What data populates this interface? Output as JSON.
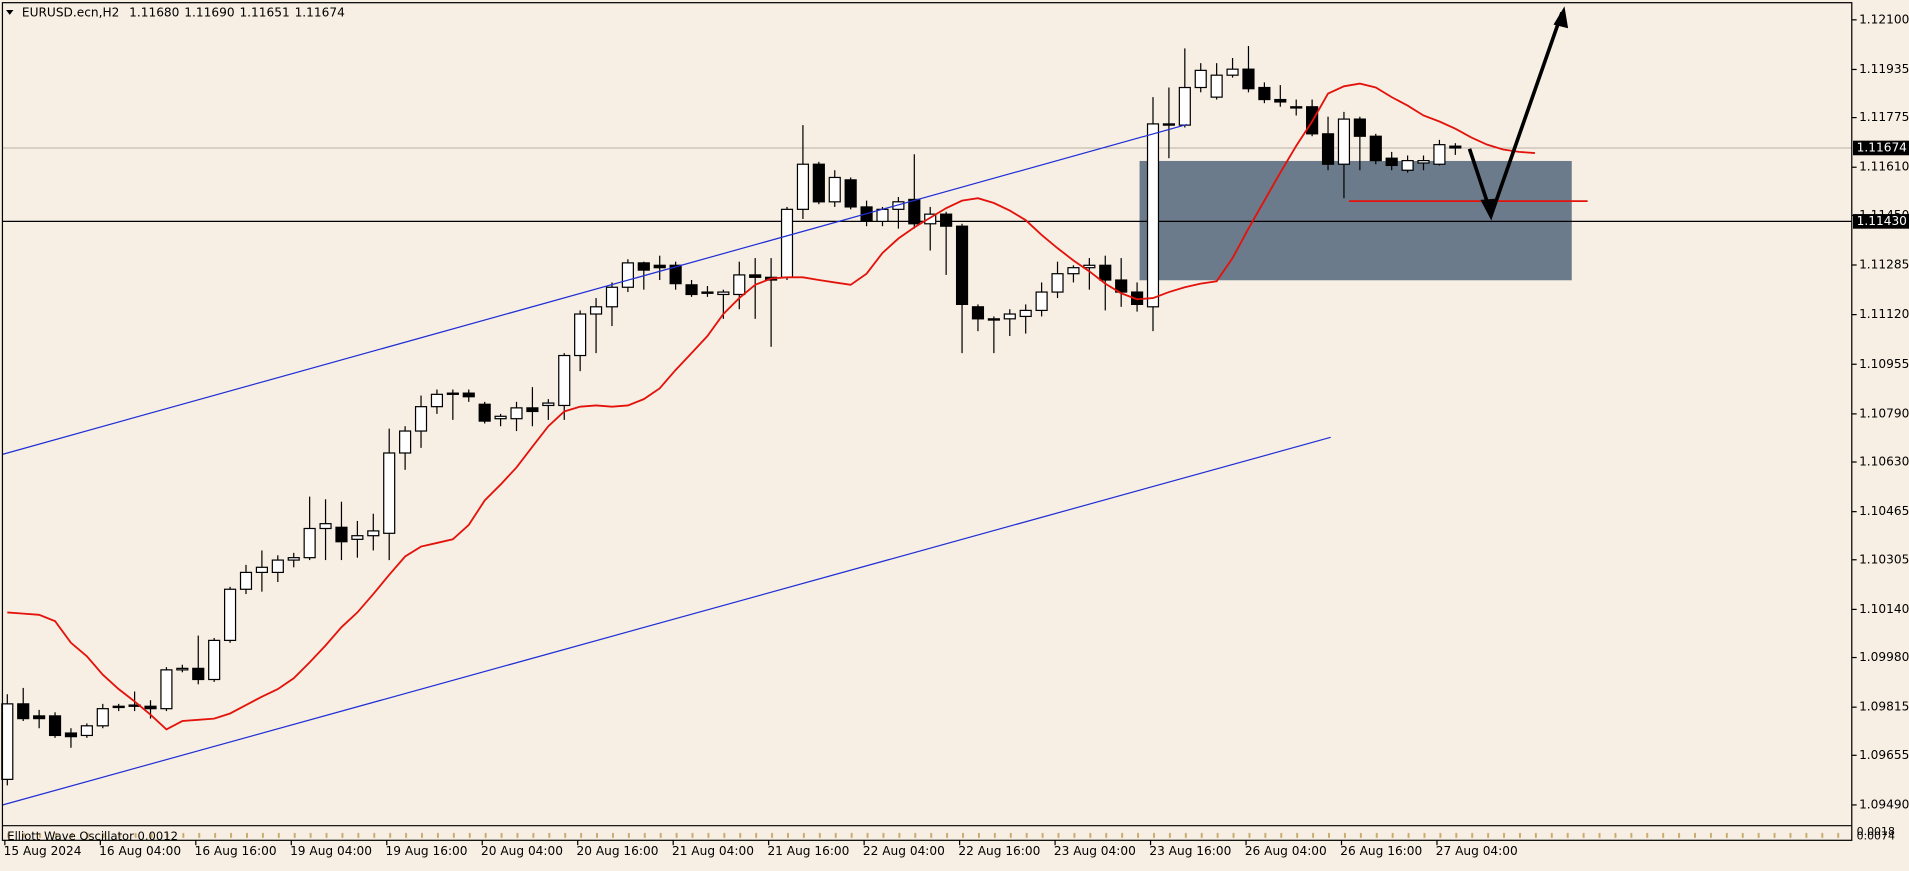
{
  "header": {
    "symbol": "EURUSD.ecn,H2",
    "prices": [
      "1.11680",
      "1.11690",
      "1.11651",
      "1.11674"
    ]
  },
  "chart_data": {
    "type": "candlestick",
    "categories": [
      "15 Aug 2024",
      null,
      null,
      null,
      null,
      null,
      "16 Aug 04:00",
      null,
      null,
      null,
      null,
      null,
      "16 Aug 16:00",
      null,
      null,
      null,
      null,
      null,
      "19 Aug 04:00",
      null,
      null,
      null,
      null,
      null,
      "19 Aug 16:00",
      null,
      null,
      null,
      null,
      null,
      "20 Aug 04:00",
      null,
      null,
      null,
      null,
      null,
      "20 Aug 16:00",
      null,
      null,
      null,
      null,
      null,
      "21 Aug 04:00",
      null,
      null,
      null,
      null,
      null,
      "21 Aug 16:00",
      null,
      null,
      null,
      null,
      null,
      "22 Aug 04:00",
      null,
      null,
      null,
      null,
      null,
      "22 Aug 16:00",
      null,
      null,
      null,
      null,
      null,
      "23 Aug 04:00",
      null,
      null,
      null,
      null,
      null,
      "23 Aug 16:00",
      null,
      null,
      null,
      null,
      null,
      "26 Aug 04:00",
      null,
      null,
      null,
      null,
      null,
      "26 Aug 16:00",
      null,
      null,
      null,
      null,
      null,
      "27 Aug 04:00",
      null,
      null,
      null,
      null,
      null,
      null
    ],
    "open": [
      1.09575,
      1.09826,
      1.09786,
      1.09786,
      1.09729,
      1.09721,
      1.09753,
      1.09814,
      1.09818,
      1.09818,
      1.0981,
      1.09939,
      1.09944,
      1.09907,
      1.10037,
      1.10207,
      1.10263,
      1.10263,
      1.10304,
      1.10312,
      1.10409,
      1.10413,
      1.10373,
      1.10385,
      1.10393,
      1.1066,
      1.10733,
      1.10814,
      1.10855,
      1.10859,
      1.10822,
      1.10774,
      1.10774,
      1.1081,
      1.10818,
      1.10818,
      1.10984,
      1.11122,
      1.11146,
      1.11211,
      1.11292,
      1.11284,
      1.11284,
      1.11219,
      1.11195,
      1.11187,
      1.11187,
      1.11252,
      1.11244,
      1.11244,
      1.1147,
      1.1162,
      1.11495,
      1.11568,
      1.11478,
      1.1143,
      1.1147,
      1.11503,
      1.11422,
      1.11454,
      1.11414,
      1.11146,
      1.11106,
      1.11106,
      1.11114,
      1.11134,
      1.11195,
      1.11256,
      1.11276,
      1.11284,
      1.11235,
      1.11195,
      1.11146,
      1.11754,
      1.1175,
      1.11875,
      1.11843,
      1.11916,
      1.11936,
      1.11875,
      1.11835,
      1.11811,
      1.11811,
      1.11721,
      1.1162,
      1.1177,
      1.11713,
      1.1164,
      1.116,
      1.11624,
      1.1162,
      1.1168,
      null,
      null,
      null,
      null,
      null
    ],
    "high": [
      1.09858,
      1.09879,
      1.09806,
      1.09798,
      1.09745,
      1.09761,
      1.09826,
      1.09826,
      1.09867,
      1.09838,
      1.09948,
      1.09956,
      1.10053,
      1.10045,
      1.10215,
      1.10288,
      1.10336,
      1.1032,
      1.10328,
      1.10515,
      1.10506,
      1.10498,
      1.10434,
      1.10458,
      1.10741,
      1.10749,
      1.10851,
      1.10871,
      1.10871,
      1.10871,
      1.1083,
      1.1079,
      1.1083,
      1.10879,
      1.10839,
      1.10992,
      1.11134,
      1.11175,
      1.11227,
      1.11304,
      1.11296,
      1.11316,
      1.11296,
      1.11235,
      1.11215,
      1.11203,
      1.11296,
      1.11308,
      1.11308,
      1.11478,
      1.1175,
      1.11628,
      1.116,
      1.11576,
      1.11499,
      1.11478,
      1.11511,
      1.11653,
      1.11478,
      1.11462,
      1.11422,
      1.11154,
      1.11114,
      1.11138,
      1.11154,
      1.11227,
      1.11296,
      1.11284,
      1.11308,
      1.11316,
      1.11308,
      1.11227,
      1.11843,
      1.11875,
      1.12005,
      1.11956,
      1.11956,
      1.11973,
      1.12013,
      1.11892,
      1.11883,
      1.11835,
      1.11835,
      1.11778,
      1.11794,
      1.11778,
      1.11721,
      1.11661,
      1.11649,
      1.11649,
      1.11701,
      1.1169,
      null,
      null,
      null,
      null,
      null
    ],
    "low": [
      1.09555,
      1.09769,
      1.09745,
      1.09713,
      1.0968,
      1.09713,
      1.09745,
      1.09802,
      1.09802,
      1.09777,
      1.09802,
      1.09931,
      1.09891,
      1.09899,
      1.10029,
      1.10191,
      1.10199,
      1.10231,
      1.1028,
      1.10304,
      1.10304,
      1.10304,
      1.10312,
      1.10336,
      1.10304,
      1.10604,
      1.10677,
      1.1079,
      1.1077,
      1.1083,
      1.10758,
      1.10749,
      1.10733,
      1.10749,
      1.1077,
      1.1077,
      1.10932,
      1.10992,
      1.11082,
      1.11195,
      1.11203,
      1.11235,
      1.11203,
      1.11179,
      1.11179,
      1.11106,
      1.11138,
      1.11106,
      1.11013,
      1.11235,
      1.11438,
      1.11487,
      1.11478,
      1.1147,
      1.11414,
      1.11414,
      1.11406,
      1.11406,
      1.11333,
      1.11252,
      1.10992,
      1.11065,
      1.10992,
      1.11049,
      1.11057,
      1.11114,
      1.11175,
      1.11227,
      1.11203,
      1.11134,
      1.11146,
      1.1113,
      1.11065,
      1.1164,
      1.11742,
      1.11859,
      1.11835,
      1.11908,
      1.11859,
      1.11823,
      1.11811,
      1.11782,
      1.11713,
      1.116,
      1.11507,
      1.116,
      1.1162,
      1.116,
      1.11592,
      1.116,
      1.11616,
      1.11651,
      null,
      null,
      null,
      null,
      null
    ],
    "close": [
      1.09826,
      1.09777,
      1.09777,
      1.09721,
      1.09717,
      1.09753,
      1.0981,
      1.09818,
      1.09822,
      1.0981,
      1.09939,
      1.09944,
      1.09907,
      1.10037,
      1.10207,
      1.10263,
      1.1028,
      1.10304,
      1.10312,
      1.10409,
      1.10425,
      1.10365,
      1.10385,
      1.10401,
      1.1066,
      1.10733,
      1.10814,
      1.10855,
      1.10859,
      1.10847,
      1.10766,
      1.10782,
      1.1081,
      1.10798,
      1.10826,
      1.10984,
      1.11122,
      1.11146,
      1.11211,
      1.11292,
      1.11268,
      1.11276,
      1.11223,
      1.11187,
      1.11191,
      1.11195,
      1.11252,
      1.11244,
      1.11235,
      1.1147,
      1.1162,
      1.11495,
      1.11576,
      1.11478,
      1.1143,
      1.1147,
      1.11495,
      1.11422,
      1.11454,
      1.11414,
      1.11154,
      1.11106,
      1.11102,
      1.11122,
      1.11134,
      1.11195,
      1.11256,
      1.11276,
      1.11284,
      1.11235,
      1.11195,
      1.11154,
      1.11754,
      1.1175,
      1.11875,
      1.11932,
      1.11916,
      1.11936,
      1.11871,
      1.11835,
      1.11827,
      1.11807,
      1.11721,
      1.1162,
      1.1177,
      1.11713,
      1.11632,
      1.11616,
      1.11632,
      1.11632,
      1.11685,
      1.11674,
      null,
      null,
      null,
      null,
      null
    ],
    "up_color": "#ffffff",
    "down_color": "#000000",
    "line": {
      "color": "#e3120b",
      "values": [
        1.1013,
        1.10126,
        1.10122,
        1.10101,
        1.10029,
        1.09984,
        1.09923,
        1.09875,
        1.09834,
        1.0979,
        1.09741,
        1.09769,
        1.09773,
        1.09777,
        1.09794,
        1.09822,
        1.0985,
        1.09875,
        1.09911,
        1.09964,
        1.1002,
        1.10081,
        1.1013,
        1.10191,
        1.10255,
        1.10316,
        1.10349,
        1.10361,
        1.10373,
        1.10421,
        1.10502,
        1.10555,
        1.10612,
        1.10681,
        1.10749,
        1.10798,
        1.10814,
        1.10818,
        1.10814,
        1.10818,
        1.10839,
        1.10875,
        1.10936,
        1.10992,
        1.11049,
        1.11122,
        1.11175,
        1.11219,
        1.1124,
        1.11244,
        1.11244,
        1.11235,
        1.11227,
        1.11219,
        1.11256,
        1.11325,
        1.11373,
        1.1141,
        1.11442,
        1.11474,
        1.11499,
        1.11507,
        1.11491,
        1.11466,
        1.11434,
        1.11385,
        1.11341,
        1.113,
        1.11264,
        1.11223,
        1.11191,
        1.11171,
        1.11175,
        1.11195,
        1.11211,
        1.11223,
        1.11231,
        1.11308,
        1.11406,
        1.11499,
        1.11592,
        1.11681,
        1.11762,
        1.11855,
        1.11879,
        1.11888,
        1.11875,
        1.11843,
        1.11815,
        1.11782,
        1.11762,
        1.11738,
        1.11709,
        1.11685,
        1.11669,
        1.11661,
        1.11657
      ]
    },
    "ylim": [
      1.09425,
      1.12157
    ],
    "yticks": [
      {
        "value": 1.121,
        "label": "1.12100"
      },
      {
        "value": 1.11935,
        "label": "1.11935"
      },
      {
        "value": 1.11775,
        "label": "1.11775"
      },
      {
        "value": 1.1161,
        "label": "1.11610"
      },
      {
        "value": 1.1145,
        "label": "1.11450"
      },
      {
        "value": 1.11285,
        "label": "1.11285"
      },
      {
        "value": 1.1112,
        "label": "1.11120"
      },
      {
        "value": 1.10955,
        "label": "1.10955"
      },
      {
        "value": 1.1079,
        "label": "1.10790"
      },
      {
        "value": 1.1063,
        "label": "1.10630"
      },
      {
        "value": 1.10465,
        "label": "1.10465"
      },
      {
        "value": 1.10305,
        "label": "1.10305"
      },
      {
        "value": 1.1014,
        "label": "1.10140"
      },
      {
        "value": 1.0998,
        "label": "1.09980"
      },
      {
        "value": 1.09815,
        "label": "1.09815"
      },
      {
        "value": 1.09655,
        "label": "1.09655"
      },
      {
        "value": 1.0949,
        "label": "1.09490"
      }
    ],
    "bid": {
      "value": 1.11674,
      "label": "1.11674"
    },
    "level": {
      "value": 1.1143,
      "label": "1.11430"
    },
    "oscillator": {
      "title": "Elliott Wave Oscillator 0.0012",
      "scale_labels": [
        "0.0018",
        "0.0074"
      ]
    }
  }
}
